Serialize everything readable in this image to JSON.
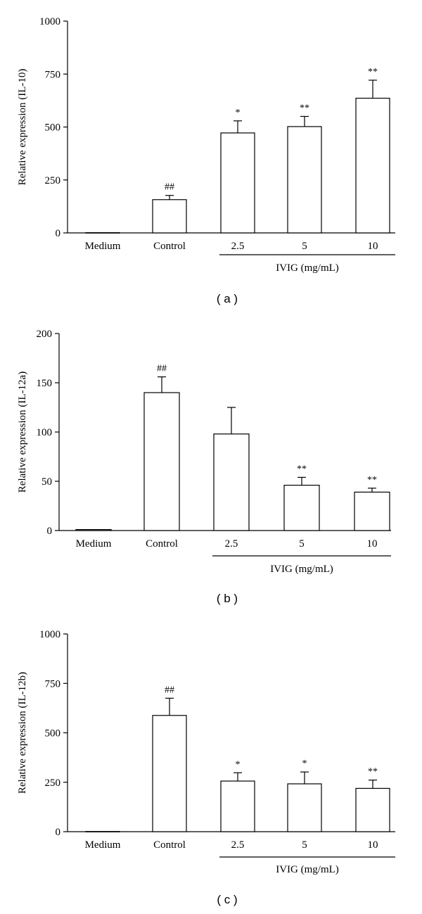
{
  "chart_data": [
    {
      "type": "bar",
      "panel_label": "( a )",
      "ylabel": "Relative expression (IL-10)",
      "ylim": [
        0,
        1000
      ],
      "yticks": [
        0,
        250,
        500,
        750,
        1000
      ],
      "categories": [
        "Medium",
        "Control",
        "2.5",
        "5",
        "10"
      ],
      "values": [
        1,
        157,
        472,
        502,
        636
      ],
      "errors": [
        0,
        20,
        57,
        48,
        85
      ],
      "annotations": [
        "",
        "##",
        "*",
        "**",
        "**"
      ],
      "group_label": "IVIG (mg/mL)",
      "group_categories": [
        "2.5",
        "5",
        "10"
      ]
    },
    {
      "type": "bar",
      "panel_label": "( b )",
      "ylabel": "Relative expression (IL-12a)",
      "ylim": [
        0,
        200
      ],
      "yticks": [
        0,
        50,
        100,
        150,
        200
      ],
      "categories": [
        "Medium",
        "Control",
        "2.5",
        "5",
        "10"
      ],
      "values": [
        1,
        140,
        98,
        46,
        39
      ],
      "errors": [
        0,
        16,
        27,
        8,
        4
      ],
      "annotations": [
        "",
        "##",
        "",
        "**",
        "**"
      ],
      "group_label": "IVIG (mg/mL)",
      "group_categories": [
        "2.5",
        "5",
        "10"
      ]
    },
    {
      "type": "bar",
      "panel_label": "( c )",
      "ylabel": "Relative expression (IL-12b)",
      "ylim": [
        0,
        1000
      ],
      "yticks": [
        0,
        250,
        500,
        750,
        1000
      ],
      "categories": [
        "Medium",
        "Control",
        "2.5",
        "5",
        "10"
      ],
      "values": [
        1,
        588,
        256,
        242,
        219
      ],
      "errors": [
        0,
        87,
        42,
        60,
        42
      ],
      "annotations": [
        "",
        "##",
        "*",
        "*",
        "**"
      ],
      "group_label": "IVIG (mg/mL)",
      "group_categories": [
        "2.5",
        "5",
        "10"
      ]
    }
  ]
}
